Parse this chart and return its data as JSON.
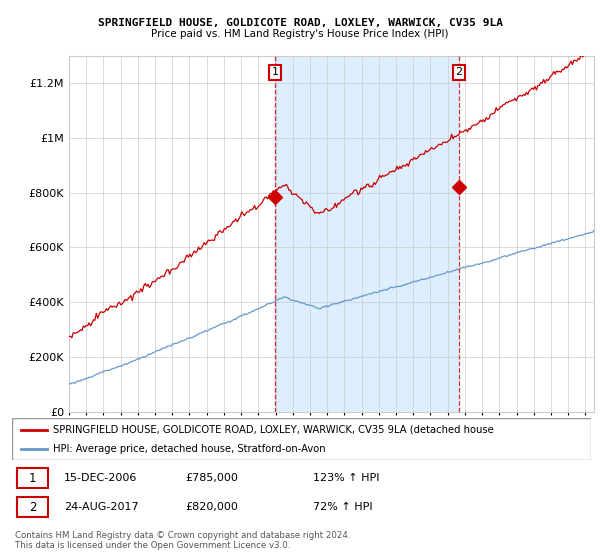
{
  "title1": "SPRINGFIELD HOUSE, GOLDICOTE ROAD, LOXLEY, WARWICK, CV35 9LA",
  "title2": "Price paid vs. HM Land Registry's House Price Index (HPI)",
  "ylim": [
    0,
    1300000
  ],
  "yticks": [
    0,
    200000,
    400000,
    600000,
    800000,
    1000000,
    1200000
  ],
  "ytick_labels": [
    "£0",
    "£200K",
    "£400K",
    "£600K",
    "£800K",
    "£1M",
    "£1.2M"
  ],
  "sale1_date_num": 2006.96,
  "sale1_price": 785000,
  "sale2_date_num": 2017.65,
  "sale2_price": 820000,
  "hpi_color": "#6699cc",
  "price_color": "#cc0000",
  "vline_color": "#cc0000",
  "shade_color": "#ddeeff",
  "grid_color": "#cccccc",
  "legend_line1": "SPRINGFIELD HOUSE, GOLDICOTE ROAD, LOXLEY, WARWICK, CV35 9LA (detached house",
  "legend_line2": "HPI: Average price, detached house, Stratford-on-Avon",
  "table_rows": [
    {
      "num": "1",
      "date": "15-DEC-2006",
      "price": "£785,000",
      "pct": "123% ↑ HPI"
    },
    {
      "num": "2",
      "date": "24-AUG-2017",
      "price": "£820,000",
      "pct": "72% ↑ HPI"
    }
  ],
  "footer": "Contains HM Land Registry data © Crown copyright and database right 2024.\nThis data is licensed under the Open Government Licence v3.0.",
  "xstart": 1995,
  "xend": 2025.5,
  "npoints": 366
}
